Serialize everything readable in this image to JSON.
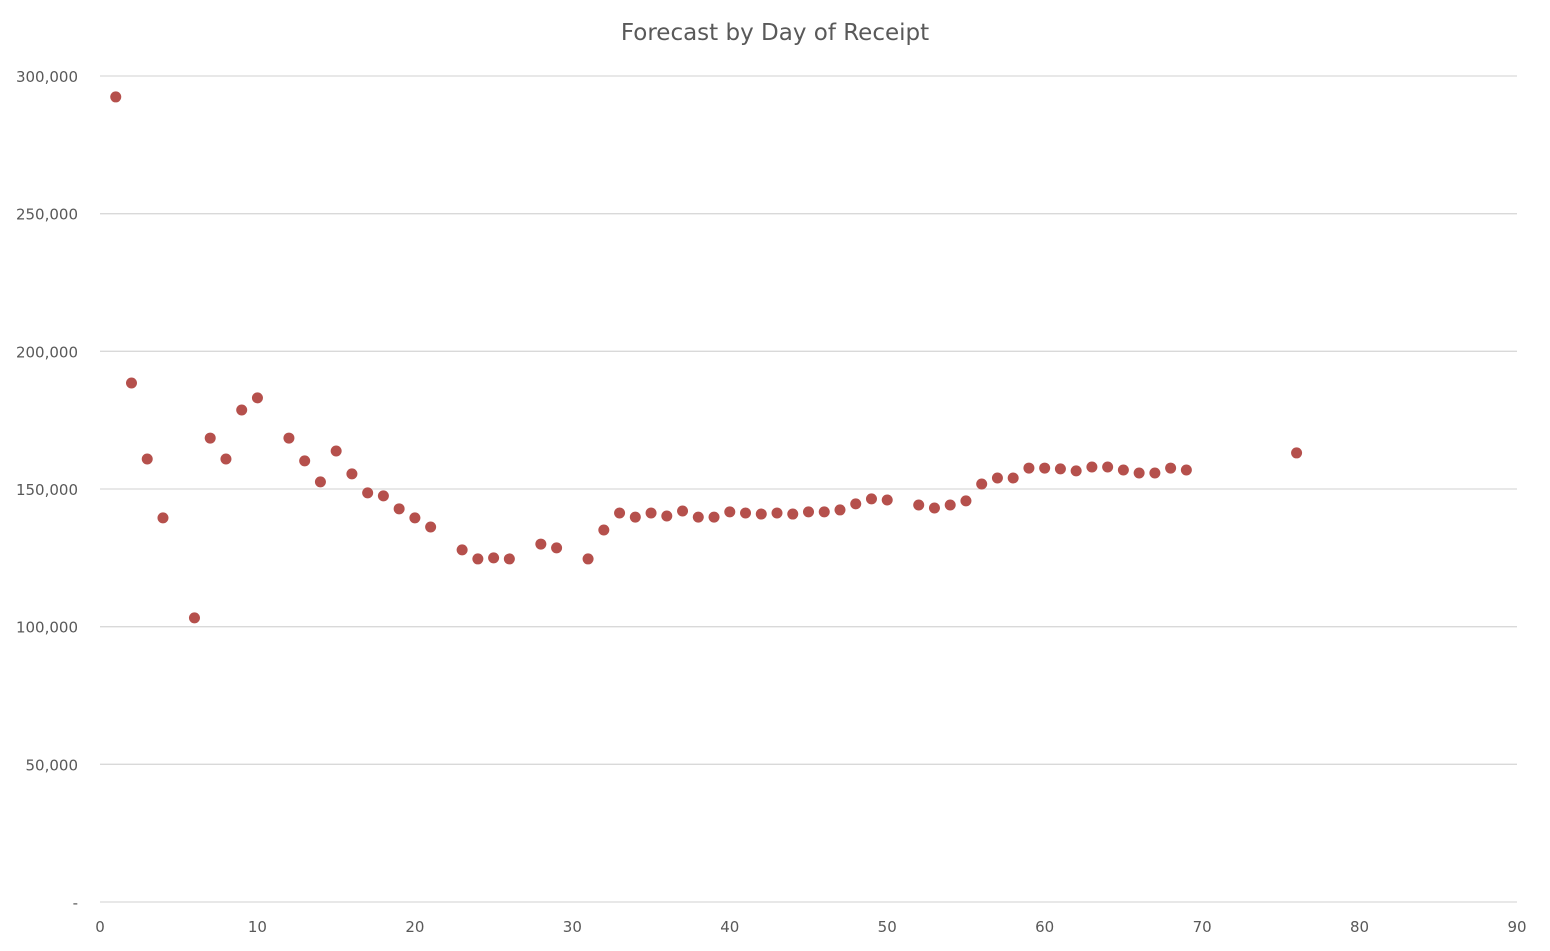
{
  "chart_data": {
    "type": "scatter",
    "title": "Forecast by Day of Receipt",
    "xlabel": "",
    "ylabel": "",
    "xlim": [
      0,
      90
    ],
    "ylim": [
      0,
      300000
    ],
    "x_ticks": [
      0,
      10,
      20,
      30,
      40,
      50,
      60,
      70,
      80,
      90
    ],
    "x_tick_labels": [
      "0",
      "10",
      "20",
      "30",
      "40",
      "50",
      "60",
      "70",
      "80",
      "90"
    ],
    "y_ticks": [
      0,
      50000,
      100000,
      150000,
      200000,
      250000,
      300000
    ],
    "y_tick_labels": [
      "-",
      "50,000",
      "100,000",
      "150,000",
      "200,000",
      "250,000",
      "300,000"
    ],
    "grid": "horizontal",
    "legend": "none",
    "marker_color": "#b5504c",
    "series": [
      {
        "x": [
          1,
          2,
          3,
          4,
          6,
          7,
          8,
          9,
          10,
          12,
          13,
          14,
          15,
          16,
          17,
          18,
          19,
          20,
          21,
          23,
          24,
          25,
          26,
          28,
          29,
          31,
          32,
          33,
          34,
          35,
          36,
          37,
          38,
          39,
          40,
          41,
          42,
          43,
          44,
          45,
          46,
          47,
          48,
          49,
          50,
          52,
          53,
          54,
          55,
          56,
          57,
          58,
          59,
          60,
          61,
          62,
          63,
          64,
          65,
          66,
          67,
          68,
          69,
          76
        ],
        "y": [
          292400,
          188500,
          160900,
          139500,
          103200,
          168500,
          160900,
          178700,
          183100,
          168500,
          160200,
          152600,
          163800,
          155500,
          148600,
          147500,
          142800,
          139500,
          136200,
          127900,
          124600,
          125000,
          124600,
          130000,
          128600,
          124600,
          135100,
          141300,
          139800,
          141300,
          140200,
          142000,
          139800,
          139800,
          141700,
          141300,
          140900,
          141300,
          140900,
          141700,
          141700,
          142400,
          144600,
          146400,
          146000,
          144200,
          143100,
          144200,
          145700,
          151800,
          154000,
          154000,
          157600,
          157600,
          157300,
          156600,
          158000,
          158000,
          156900,
          155800,
          155800,
          157600,
          156900,
          163100
        ]
      }
    ]
  }
}
